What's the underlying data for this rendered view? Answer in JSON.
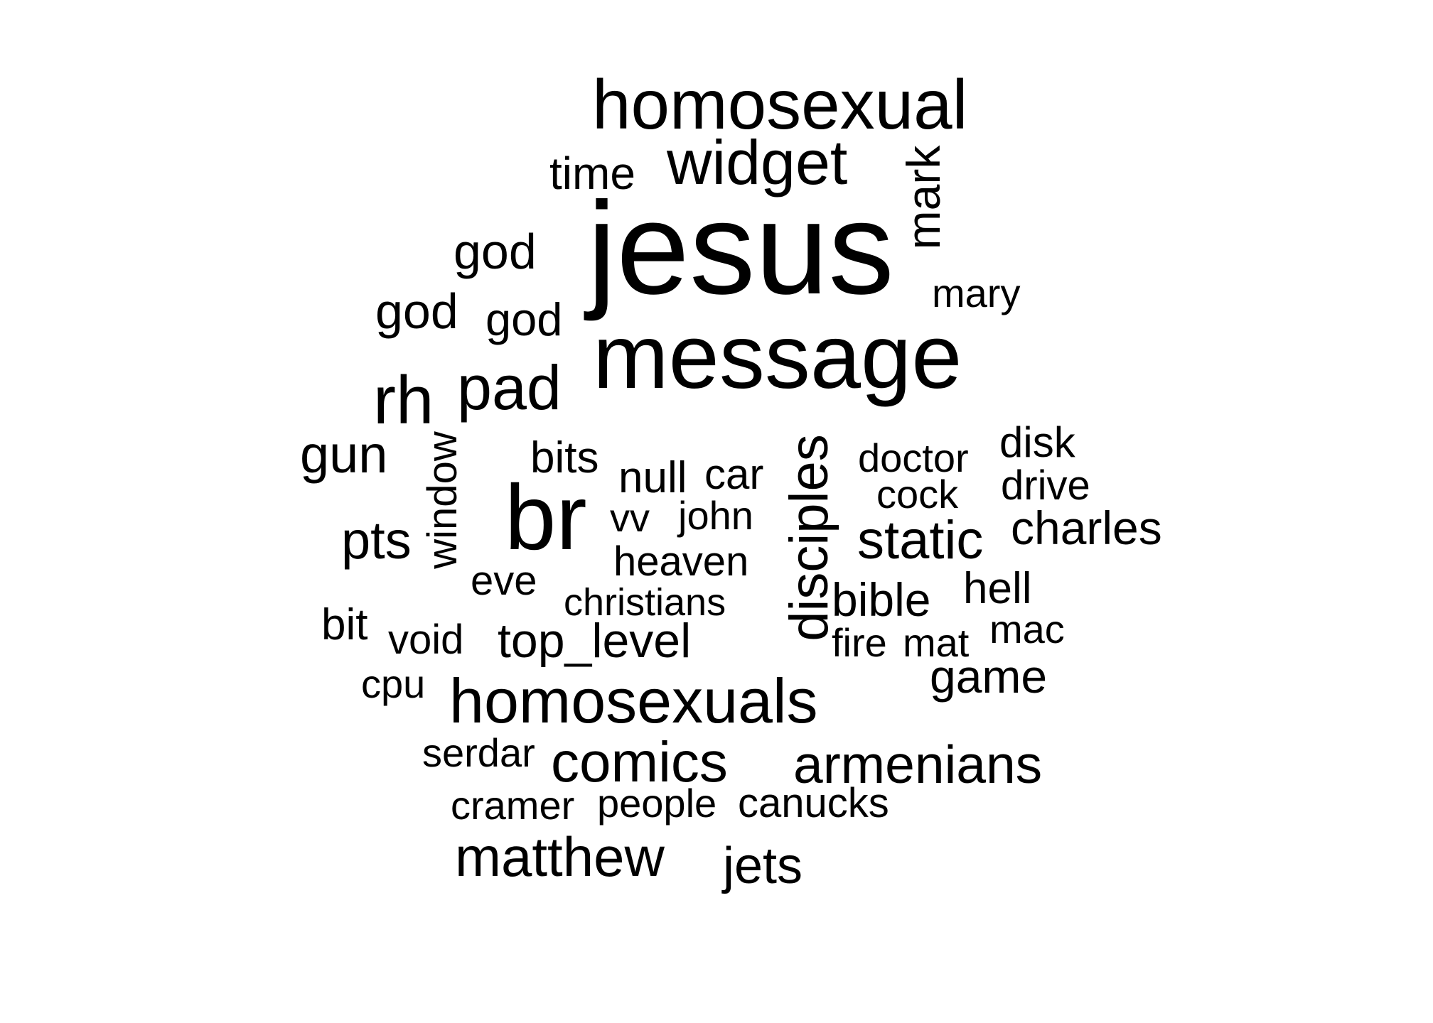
{
  "word_cloud": {
    "text_color": "#000000",
    "background_color": "#ffffff",
    "words": [
      {
        "text": "jesus"
      },
      {
        "text": "message"
      },
      {
        "text": "br"
      },
      {
        "text": "homosexual"
      },
      {
        "text": "homosexuals"
      },
      {
        "text": "widget"
      },
      {
        "text": "pad"
      },
      {
        "text": "rh"
      },
      {
        "text": "armenians"
      },
      {
        "text": "comics"
      },
      {
        "text": "matthew"
      },
      {
        "text": "static"
      },
      {
        "text": "gun"
      },
      {
        "text": "pts"
      },
      {
        "text": "god"
      },
      {
        "text": "god"
      },
      {
        "text": "god"
      },
      {
        "text": "top_level"
      },
      {
        "text": "jets"
      },
      {
        "text": "charles"
      },
      {
        "text": "game"
      },
      {
        "text": "mark",
        "rotated": true
      },
      {
        "text": "disciples",
        "rotated": true
      },
      {
        "text": "bible"
      },
      {
        "text": "hell"
      },
      {
        "text": "null"
      },
      {
        "text": "time"
      },
      {
        "text": "mary"
      },
      {
        "text": "bits"
      },
      {
        "text": "car"
      },
      {
        "text": "heaven"
      },
      {
        "text": "eve"
      },
      {
        "text": "bit"
      },
      {
        "text": "void"
      },
      {
        "text": "window",
        "rotated": true
      },
      {
        "text": "vv"
      },
      {
        "text": "john"
      },
      {
        "text": "doctor"
      },
      {
        "text": "disk"
      },
      {
        "text": "drive"
      },
      {
        "text": "cock"
      },
      {
        "text": "christians"
      },
      {
        "text": "mac"
      },
      {
        "text": "mat"
      },
      {
        "text": "fire"
      },
      {
        "text": "cpu"
      },
      {
        "text": "serdar"
      },
      {
        "text": "cramer"
      },
      {
        "text": "people"
      },
      {
        "text": "canucks"
      }
    ]
  }
}
